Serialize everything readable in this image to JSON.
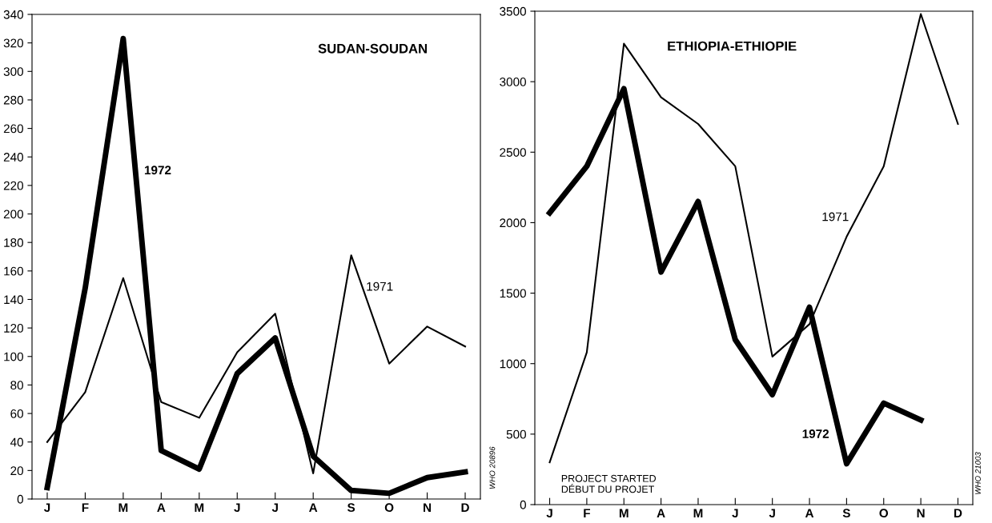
{
  "chart_data": [
    {
      "type": "line",
      "title": "SUDAN-SOUDAN",
      "categories": [
        "J",
        "F",
        "M",
        "A",
        "M",
        "J",
        "J",
        "A",
        "S",
        "O",
        "N",
        "D"
      ],
      "series": [
        {
          "name": "1971",
          "color": "#000000",
          "values": [
            40,
            75,
            155,
            68,
            57,
            103,
            130,
            18,
            171,
            95,
            121,
            107
          ]
        },
        {
          "name": "1972",
          "color": "#000000",
          "values": [
            8,
            148,
            323,
            34,
            21,
            88,
            113,
            30,
            6,
            4,
            15,
            19
          ]
        }
      ],
      "ylim": [
        0,
        340
      ],
      "yticks": [
        0,
        20,
        40,
        60,
        80,
        100,
        120,
        140,
        160,
        180,
        200,
        220,
        240,
        260,
        280,
        300,
        320,
        340
      ],
      "grid": false,
      "legend": false,
      "marker": "none",
      "line_style": "solid",
      "annotations": [
        "WHO 20896"
      ]
    },
    {
      "type": "line",
      "title": "ETHIOPIA-ETHIOPIE",
      "categories": [
        "J",
        "F",
        "M",
        "A",
        "M",
        "J",
        "J",
        "A",
        "S",
        "O",
        "N",
        "D"
      ],
      "series": [
        {
          "name": "1971",
          "color": "#000000",
          "values": [
            300,
            1080,
            3270,
            2890,
            2700,
            2400,
            1050,
            1280,
            1900,
            2400,
            3480,
            2700
          ]
        },
        {
          "name": "1972",
          "color": "#000000",
          "values": [
            2070,
            2400,
            2950,
            1650,
            2150,
            1170,
            780,
            1400,
            290,
            720,
            600,
            null
          ]
        }
      ],
      "ylim": [
        0,
        3500
      ],
      "yticks": [
        0,
        500,
        1000,
        1500,
        2000,
        2500,
        3000,
        3500
      ],
      "grid": false,
      "legend": false,
      "marker": "none",
      "line_style": "solid",
      "annotations": [
        "PROJECT STARTED\nDÉBUT DU PROJET",
        "WHO 21003"
      ]
    }
  ]
}
